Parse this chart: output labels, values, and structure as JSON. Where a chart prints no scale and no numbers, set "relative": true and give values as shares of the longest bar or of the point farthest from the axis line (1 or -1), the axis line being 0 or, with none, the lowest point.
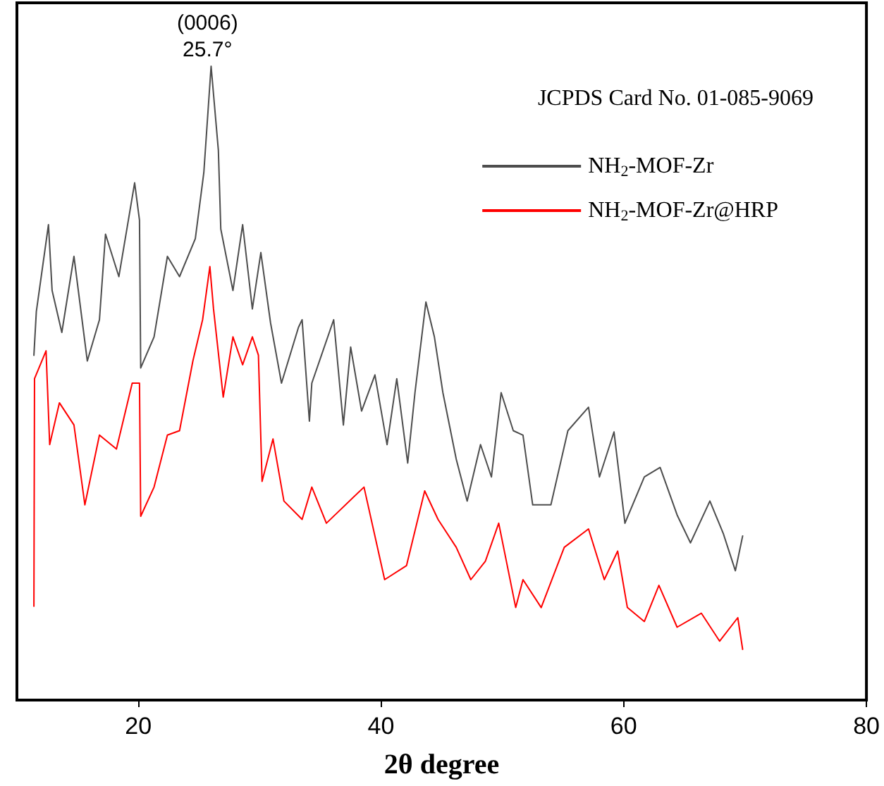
{
  "chart_data": {
    "type": "line",
    "relative": true,
    "xlabel": "2θ degree",
    "xlim": [
      10,
      80
    ],
    "xticks": [
      20,
      40,
      60,
      80
    ],
    "grid": false,
    "legend": "top right",
    "marker": "none",
    "line_style": "solid",
    "annotations": [
      {
        "text": "(0006)",
        "x": 25.7,
        "y": 1.0
      },
      {
        "text": "25.7°",
        "x": 25.7,
        "y": 1.0
      },
      "JCPDS Card No. 01-085-9069"
    ],
    "series": [
      {
        "name": "NH$_{2}$-MOF-Zr",
        "color": "#4d4d4d",
        "x": [
          11.4,
          11.6,
          12.6,
          12.9,
          13.7,
          14.7,
          15.8,
          16.8,
          17.3,
          18.4,
          19.7,
          20.1,
          20.2,
          21.3,
          22.4,
          23.4,
          24.7,
          25.4,
          26.0,
          26.6,
          26.8,
          27.8,
          28.6,
          29.4,
          30.1,
          30.9,
          31.8,
          33.2,
          33.5,
          34.1,
          34.3,
          36.1,
          36.9,
          37.5,
          38.4,
          39.5,
          40.5,
          41.3,
          42.2,
          42.8,
          43.7,
          44.4,
          45.1,
          46.2,
          47.1,
          48.2,
          49.1,
          49.9,
          50.9,
          51.7,
          52.5,
          54.0,
          55.4,
          57.1,
          58.0,
          59.2,
          60.1,
          61.7,
          63.0,
          64.4,
          65.5,
          67.1,
          68.2,
          69.2,
          69.8
        ],
        "values": [
          0.544,
          0.613,
          0.75,
          0.646,
          0.58,
          0.7,
          0.535,
          0.6,
          0.735,
          0.668,
          0.816,
          0.757,
          0.524,
          0.573,
          0.7,
          0.668,
          0.728,
          0.832,
          1.0,
          0.867,
          0.743,
          0.646,
          0.75,
          0.617,
          0.706,
          0.595,
          0.5,
          0.588,
          0.6,
          0.44,
          0.5,
          0.6,
          0.434,
          0.557,
          0.456,
          0.513,
          0.403,
          0.507,
          0.374,
          0.485,
          0.628,
          0.573,
          0.485,
          0.38,
          0.314,
          0.403,
          0.352,
          0.485,
          0.425,
          0.418,
          0.308,
          0.308,
          0.425,
          0.462,
          0.352,
          0.423,
          0.279,
          0.352,
          0.367,
          0.292,
          0.248,
          0.314,
          0.263,
          0.204,
          0.259
        ]
      },
      {
        "name": "NH$_{2}$-MOF-Zr@HRP",
        "color": "#ff0000",
        "x": [
          11.4,
          11.45,
          12.4,
          12.7,
          13.5,
          14.7,
          15.6,
          16.8,
          18.2,
          19.5,
          20.1,
          20.2,
          21.3,
          22.4,
          23.4,
          24.5,
          25.3,
          25.9,
          26.2,
          27.0,
          27.8,
          28.6,
          29.4,
          29.9,
          30.2,
          31.1,
          32.0,
          33.5,
          34.3,
          35.5,
          38.6,
          40.3,
          42.1,
          43.6,
          44.7,
          46.2,
          47.4,
          48.6,
          49.7,
          51.1,
          51.7,
          53.2,
          55.1,
          57.1,
          58.4,
          59.5,
          60.3,
          61.7,
          62.9,
          64.4,
          66.4,
          67.9,
          69.4,
          69.8
        ],
        "values": [
          0.148,
          0.507,
          0.551,
          0.403,
          0.469,
          0.434,
          0.308,
          0.418,
          0.396,
          0.5,
          0.5,
          0.29,
          0.336,
          0.418,
          0.425,
          0.535,
          0.6,
          0.684,
          0.617,
          0.478,
          0.573,
          0.529,
          0.573,
          0.544,
          0.345,
          0.412,
          0.314,
          0.285,
          0.336,
          0.279,
          0.336,
          0.19,
          0.212,
          0.33,
          0.285,
          0.241,
          0.19,
          0.219,
          0.279,
          0.146,
          0.19,
          0.146,
          0.241,
          0.27,
          0.19,
          0.235,
          0.146,
          0.124,
          0.181,
          0.115,
          0.137,
          0.093,
          0.13,
          0.08
        ]
      }
    ]
  }
}
